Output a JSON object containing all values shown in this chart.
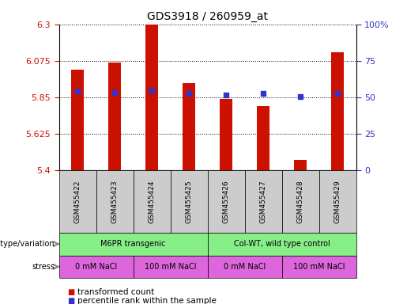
{
  "title": "GDS3918 / 260959_at",
  "samples": [
    "GSM455422",
    "GSM455423",
    "GSM455424",
    "GSM455425",
    "GSM455426",
    "GSM455427",
    "GSM455428",
    "GSM455429"
  ],
  "bar_values": [
    6.02,
    6.065,
    6.3,
    5.935,
    5.84,
    5.795,
    5.465,
    6.13
  ],
  "bar_bottom": 5.4,
  "dot_values": [
    5.89,
    5.88,
    5.895,
    5.875,
    5.865,
    5.875,
    5.855,
    5.875
  ],
  "ylim_left": [
    5.4,
    6.3
  ],
  "ylim_right": [
    0,
    100
  ],
  "yticks_left": [
    5.4,
    5.625,
    5.85,
    6.075,
    6.3
  ],
  "yticks_right": [
    0,
    25,
    50,
    75,
    100
  ],
  "ytick_labels_left": [
    "5.4",
    "5.625",
    "5.85",
    "6.075",
    "6.3"
  ],
  "ytick_labels_right": [
    "0",
    "25",
    "50",
    "75",
    "100%"
  ],
  "bar_color": "#cc1100",
  "dot_color": "#3333cc",
  "grid_color": "#000000",
  "bg_color": "#ffffff",
  "sample_cell_color": "#cccccc",
  "genotype_color": "#88ee88",
  "stress_color": "#dd66dd",
  "geno_groups": [
    {
      "label": "M6PR transgenic",
      "start": 0,
      "end": 4
    },
    {
      "label": "Col-WT, wild type control",
      "start": 4,
      "end": 8
    }
  ],
  "stress_groups": [
    {
      "label": "0 mM NaCl",
      "start": 0,
      "end": 2
    },
    {
      "label": "100 mM NaCl",
      "start": 2,
      "end": 4
    },
    {
      "label": "0 mM NaCl",
      "start": 4,
      "end": 6
    },
    {
      "label": "100 mM NaCl",
      "start": 6,
      "end": 8
    }
  ],
  "legend_items": [
    {
      "color": "#cc1100",
      "label": "transformed count"
    },
    {
      "color": "#3333cc",
      "label": "percentile rank within the sample"
    }
  ],
  "genotype_label": "genotype/variation",
  "stress_label": "stress",
  "tick_color_left": "#cc1100",
  "tick_color_right": "#3333cc",
  "arrow_color": "#888888"
}
